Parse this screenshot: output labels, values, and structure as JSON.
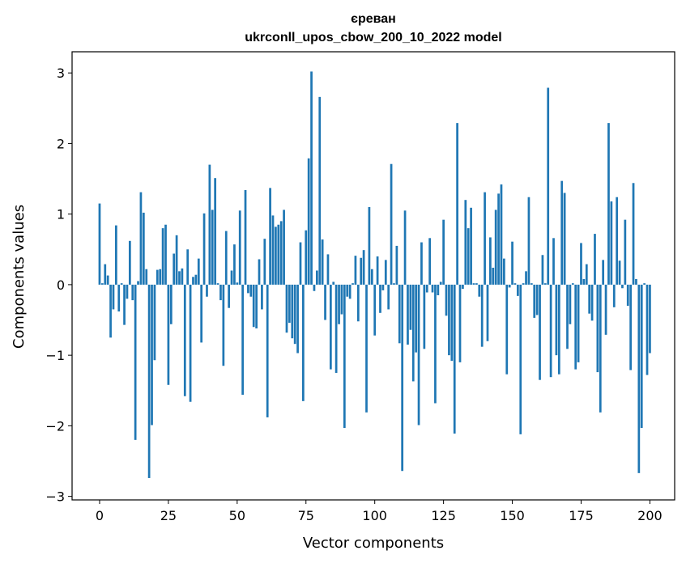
{
  "chart_data": {
    "type": "bar",
    "title_line1": "єреван",
    "title_line2": "ukrconll_upos_cbow_200_10_2022 model",
    "xlabel": "Vector components",
    "ylabel": "Components values",
    "xlim": [
      -10,
      209
    ],
    "ylim": [
      -3.05,
      3.3
    ],
    "xticks": [
      0,
      25,
      50,
      75,
      100,
      125,
      150,
      175,
      200
    ],
    "yticks": [
      -3,
      -2,
      -1,
      0,
      1,
      2,
      3
    ],
    "ytick_labels": [
      "−3",
      "−2",
      "−1",
      "0",
      "1",
      "2",
      "3"
    ],
    "bar_color": "#1f77b4",
    "values": [
      1.15,
      0.02,
      0.29,
      0.13,
      -0.75,
      -0.35,
      0.84,
      -0.38,
      0.02,
      -0.57,
      -0.2,
      0.62,
      -0.22,
      -2.2,
      0.05,
      1.31,
      1.02,
      0.22,
      -2.74,
      -1.99,
      -1.07,
      0.21,
      0.22,
      0.8,
      0.85,
      -1.42,
      -0.56,
      0.44,
      0.7,
      0.19,
      0.23,
      -1.58,
      0.5,
      -1.66,
      0.11,
      0.14,
      0.37,
      -0.82,
      1.01,
      -0.17,
      1.7,
      1.06,
      1.51,
      0.02,
      -0.22,
      -1.15,
      0.76,
      -0.33,
      0.2,
      0.57,
      0.03,
      1.05,
      -1.56,
      1.34,
      -0.12,
      -0.17,
      -0.6,
      -0.62,
      0.36,
      -0.35,
      0.65,
      -1.88,
      1.37,
      0.98,
      0.82,
      0.85,
      0.9,
      1.06,
      -0.68,
      -0.54,
      -0.76,
      -0.84,
      -0.97,
      0.6,
      -1.65,
      0.77,
      1.79,
      3.02,
      -0.09,
      0.2,
      2.66,
      0.64,
      -0.5,
      0.43,
      -1.2,
      0.04,
      -1.25,
      -0.56,
      -0.42,
      -2.03,
      -0.17,
      -0.2,
      0.02,
      0.41,
      -0.52,
      0.38,
      0.49,
      -1.81,
      1.1,
      0.22,
      -0.72,
      0.4,
      -0.4,
      -0.08,
      0.35,
      -0.35,
      1.71,
      0.02,
      0.55,
      -0.83,
      -2.64,
      1.05,
      -0.85,
      -0.64,
      -1.37,
      -0.96,
      -1.99,
      0.6,
      -0.91,
      -0.11,
      0.66,
      -0.11,
      -1.68,
      -0.15,
      0.04,
      0.92,
      -0.44,
      -1.0,
      -1.08,
      -2.11,
      2.29,
      -1.1,
      -0.06,
      1.2,
      0.8,
      1.09,
      0.02,
      0.02,
      -0.17,
      -0.88,
      1.31,
      -0.8,
      0.67,
      0.24,
      1.06,
      1.29,
      1.42,
      0.37,
      -1.27,
      -0.04,
      0.61,
      0.02,
      -0.16,
      -2.12,
      0.02,
      0.19,
      1.24,
      0.02,
      -0.47,
      -0.43,
      -1.35,
      0.42,
      0.02,
      2.79,
      -1.31,
      0.66,
      -1.0,
      -1.27,
      1.47,
      1.3,
      -0.91,
      -0.56,
      0.02,
      -1.2,
      -1.1,
      0.59,
      0.08,
      0.29,
      -0.41,
      -0.51,
      0.72,
      -1.24,
      -1.81,
      0.35,
      -0.71,
      2.29,
      1.18,
      -0.32,
      1.24,
      0.34,
      -0.05,
      0.92,
      -0.3,
      -1.21,
      1.44,
      0.08,
      -2.67,
      -2.03,
      0.02,
      -1.28,
      -0.97
    ]
  }
}
